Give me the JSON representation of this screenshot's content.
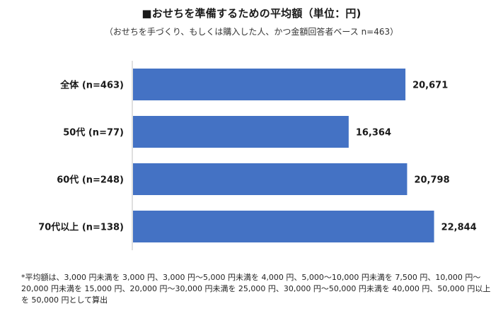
{
  "chart_data": {
    "type": "bar",
    "orientation": "horizontal",
    "title": "■おせちを準備するための平均額（単位：円)",
    "subtitle": "（おせちを手づくり、もしくは購入した人、かつ金額回答者ベース n=463）",
    "categories": [
      "全体 (n=463)",
      "50代 (n=77)",
      "60代 (n=248)",
      "70代以上 (n=138)"
    ],
    "values": [
      20671,
      16364,
      20798,
      22844
    ],
    "value_labels": [
      "20,671",
      "16,364",
      "20,798",
      "22,844"
    ],
    "xlim": [
      0,
      27000
    ],
    "grid": false,
    "bar_color": "#4472C4"
  },
  "footnote": "*平均額は、3,000 円未満を 3,000 円、3,000 円〜5,000 円未満を 4,000 円、5,000〜10,000 円未満を 7,500 円、10,000 円〜20,000 円未満を 15,000 円、20,000 円〜30,000 円未満を 25,000 円、30,000 円〜50,000 円未満を 40,000 円、50,000 円以上を 50,000 円として算出"
}
